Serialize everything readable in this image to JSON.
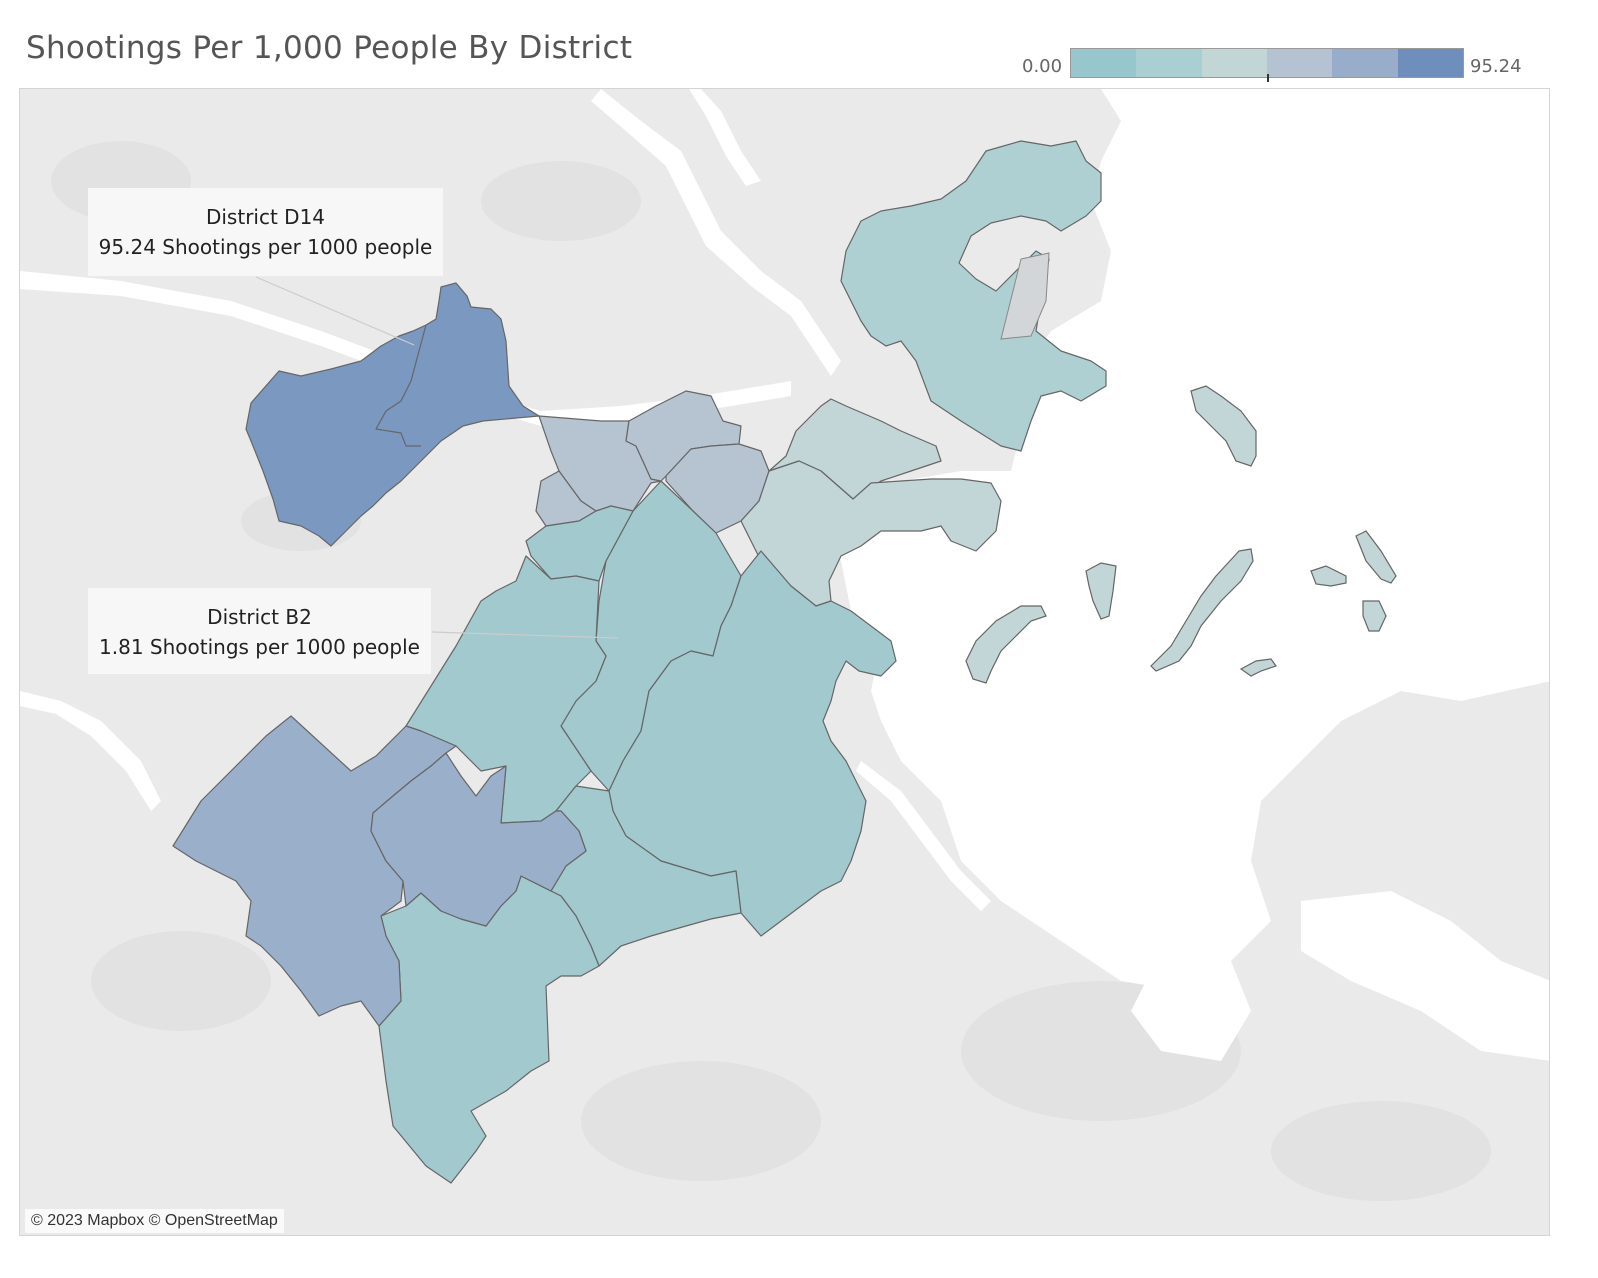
{
  "title": "Shootings Per 1,000 People By District",
  "legend": {
    "min_label": "0.00",
    "max_label": "95.24",
    "ramp_colors": [
      "#97c6cc",
      "#a9cfd3",
      "#c2d6d6",
      "#b5c2d2",
      "#97adc9",
      "#6e8fbb"
    ]
  },
  "tooltips": [
    {
      "district": "District D14",
      "text": "95.24 Shootings per 1000 people"
    },
    {
      "district": "District B2",
      "text": "1.81 Shootings per 1000 people"
    }
  ],
  "map": {
    "land_color": "#eaeaea",
    "water_color": "#ffffff",
    "district_colors": {
      "highest": "#7a98c0",
      "high": "#9aafca",
      "mid": "#b6c4d2",
      "low_mid": "#c2d5d7",
      "low": "#aed0d3",
      "lowest": "#a1c9ce"
    }
  },
  "attribution": "© 2023 Mapbox © OpenStreetMap"
}
